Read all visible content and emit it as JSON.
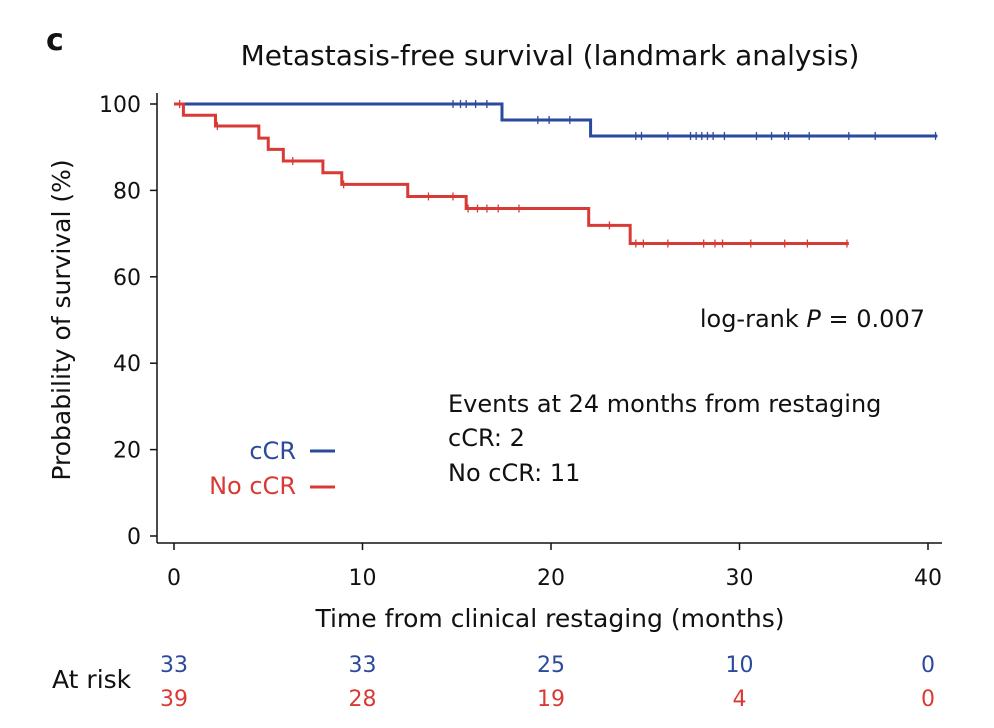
{
  "panel_label": "c",
  "chart_data": {
    "type": "line",
    "subtype": "kaplan-meier",
    "title": "Metastasis-free survival (landmark analysis)",
    "xlabel": "Time from clinical restaging (months)",
    "ylabel": "Probability of survival (%)",
    "xlim": [
      0,
      40
    ],
    "ylim": [
      0,
      100
    ],
    "x_ticks": [
      "0",
      "10",
      "20",
      "30",
      "40"
    ],
    "y_ticks": [
      "0",
      "20",
      "40",
      "60",
      "80",
      "100"
    ],
    "grid": false,
    "legend_position": "left-lower",
    "series": [
      {
        "name": "cCR",
        "color": "#2b4a9c",
        "steps": [
          [
            0,
            100
          ],
          [
            17.4,
            96.3
          ],
          [
            22.1,
            92.6
          ],
          [
            40.5,
            92.6
          ]
        ],
        "censored": [
          [
            14.8,
            100
          ],
          [
            15.2,
            100
          ],
          [
            15.5,
            100
          ],
          [
            16.0,
            100
          ],
          [
            16.6,
            100
          ],
          [
            19.3,
            96.3
          ],
          [
            19.9,
            96.3
          ],
          [
            21.0,
            96.3
          ],
          [
            24.5,
            92.6
          ],
          [
            24.8,
            92.6
          ],
          [
            26.2,
            92.6
          ],
          [
            27.4,
            92.6
          ],
          [
            27.7,
            92.6
          ],
          [
            28.0,
            92.6
          ],
          [
            28.3,
            92.6
          ],
          [
            28.6,
            92.6
          ],
          [
            29.2,
            92.6
          ],
          [
            30.9,
            92.6
          ],
          [
            31.7,
            92.6
          ],
          [
            32.4,
            92.6
          ],
          [
            32.6,
            92.6
          ],
          [
            33.7,
            92.6
          ],
          [
            35.8,
            92.6
          ],
          [
            37.2,
            92.6
          ],
          [
            40.4,
            92.6
          ]
        ]
      },
      {
        "name": "No cCR",
        "color": "#d93a35",
        "steps": [
          [
            0,
            100
          ],
          [
            0.5,
            97.4
          ],
          [
            2.2,
            94.9
          ],
          [
            4.5,
            92.1
          ],
          [
            5.0,
            89.5
          ],
          [
            5.8,
            86.8
          ],
          [
            7.9,
            84.1
          ],
          [
            8.9,
            81.4
          ],
          [
            12.4,
            78.6
          ],
          [
            15.5,
            75.8
          ],
          [
            22.0,
            71.9
          ],
          [
            24.2,
            67.7
          ],
          [
            35.8,
            67.7
          ]
        ],
        "censored": [
          [
            0.3,
            100
          ],
          [
            2.3,
            94.9
          ],
          [
            6.3,
            86.8
          ],
          [
            9.0,
            81.4
          ],
          [
            13.5,
            78.6
          ],
          [
            14.8,
            78.6
          ],
          [
            15.6,
            75.8
          ],
          [
            16.1,
            75.8
          ],
          [
            16.6,
            75.8
          ],
          [
            17.2,
            75.8
          ],
          [
            18.3,
            75.8
          ],
          [
            23.1,
            71.9
          ],
          [
            24.5,
            67.7
          ],
          [
            24.9,
            67.7
          ],
          [
            26.2,
            67.7
          ],
          [
            28.1,
            67.7
          ],
          [
            28.7,
            67.7
          ],
          [
            29.1,
            67.7
          ],
          [
            30.6,
            67.7
          ],
          [
            32.4,
            67.7
          ],
          [
            33.6,
            67.7
          ],
          [
            35.7,
            67.7
          ]
        ]
      }
    ],
    "annotations": {
      "logrank": "log-rank",
      "p_symbol": "P",
      "p_value": "= 0.007",
      "events_title": "Events at 24 months from restaging",
      "events_ccr": "cCR: 2",
      "events_noccr": "No cCR: 11"
    },
    "at_risk": {
      "label": "At risk",
      "times": [
        0,
        10,
        20,
        30,
        40
      ],
      "ccr": [
        "33",
        "33",
        "25",
        "10",
        "0"
      ],
      "noccr": [
        "39",
        "28",
        "19",
        "4",
        "0"
      ]
    }
  }
}
